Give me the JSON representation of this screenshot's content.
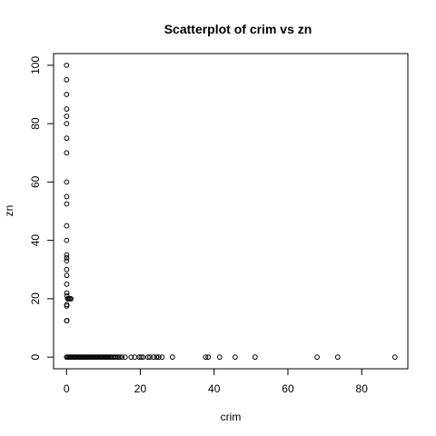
{
  "chart_data": {
    "type": "scatter",
    "title": "Scatterplot of crim vs zn",
    "xlabel": "crim",
    "ylabel": "zn",
    "xlim": [
      -3.5,
      92.5
    ],
    "ylim": [
      -4,
      104
    ],
    "xticks": [
      0,
      20,
      40,
      60,
      80
    ],
    "yticks": [
      0,
      20,
      40,
      60,
      80,
      100
    ],
    "grid": false,
    "marker": "open-circle",
    "points": [
      [
        0.02,
        100
      ],
      [
        0.03,
        95
      ],
      [
        0.02,
        90
      ],
      [
        0.04,
        85
      ],
      [
        0.03,
        82.5
      ],
      [
        0.02,
        80
      ],
      [
        0.05,
        75
      ],
      [
        0.04,
        70
      ],
      [
        0.03,
        60
      ],
      [
        0.05,
        55
      ],
      [
        0.06,
        52.5
      ],
      [
        0.04,
        45
      ],
      [
        0.03,
        40
      ],
      [
        0.05,
        35
      ],
      [
        0.06,
        34
      ],
      [
        0.04,
        33
      ],
      [
        0.05,
        30
      ],
      [
        0.07,
        28
      ],
      [
        0.06,
        25
      ],
      [
        0.08,
        22
      ],
      [
        0.1,
        21
      ],
      [
        0.3,
        20
      ],
      [
        0.6,
        20
      ],
      [
        0.9,
        20
      ],
      [
        1.2,
        20
      ],
      [
        0.07,
        18
      ],
      [
        0.06,
        17.5
      ],
      [
        0.05,
        12.5
      ],
      [
        0.1,
        12.5
      ],
      [
        0.02,
        0
      ],
      [
        0.3,
        0
      ],
      [
        0.6,
        0
      ],
      [
        0.9,
        0
      ],
      [
        1.2,
        0
      ],
      [
        1.5,
        0
      ],
      [
        1.8,
        0
      ],
      [
        2.1,
        0
      ],
      [
        2.4,
        0
      ],
      [
        2.7,
        0
      ],
      [
        3.0,
        0
      ],
      [
        3.3,
        0
      ],
      [
        3.6,
        0
      ],
      [
        3.9,
        0
      ],
      [
        4.2,
        0
      ],
      [
        4.5,
        0
      ],
      [
        4.8,
        0
      ],
      [
        5.1,
        0
      ],
      [
        5.4,
        0
      ],
      [
        5.7,
        0
      ],
      [
        6.0,
        0
      ],
      [
        6.3,
        0
      ],
      [
        6.6,
        0
      ],
      [
        6.9,
        0
      ],
      [
        7.2,
        0
      ],
      [
        7.5,
        0
      ],
      [
        7.8,
        0
      ],
      [
        8.1,
        0
      ],
      [
        8.4,
        0
      ],
      [
        8.7,
        0
      ],
      [
        9.0,
        0
      ],
      [
        9.3,
        0
      ],
      [
        9.6,
        0
      ],
      [
        9.9,
        0
      ],
      [
        10.2,
        0
      ],
      [
        10.5,
        0
      ],
      [
        10.8,
        0
      ],
      [
        11.1,
        0
      ],
      [
        11.4,
        0
      ],
      [
        11.7,
        0
      ],
      [
        12.0,
        0
      ],
      [
        12.4,
        0
      ],
      [
        12.8,
        0
      ],
      [
        13.2,
        0
      ],
      [
        13.6,
        0
      ],
      [
        14.0,
        0
      ],
      [
        14.4,
        0
      ],
      [
        15.0,
        0
      ],
      [
        15.9,
        0
      ],
      [
        17.5,
        0
      ],
      [
        18.5,
        0
      ],
      [
        19.7,
        0
      ],
      [
        20.2,
        0
      ],
      [
        20.7,
        0
      ],
      [
        22.1,
        0
      ],
      [
        22.6,
        0
      ],
      [
        23.6,
        0
      ],
      [
        24.4,
        0
      ],
      [
        25.0,
        0
      ],
      [
        25.9,
        0
      ],
      [
        28.7,
        0
      ],
      [
        37.7,
        0
      ],
      [
        38.4,
        0
      ],
      [
        41.5,
        0
      ],
      [
        45.7,
        0
      ],
      [
        51.1,
        0
      ],
      [
        67.9,
        0
      ],
      [
        73.5,
        0
      ],
      [
        89.0,
        0
      ]
    ]
  }
}
